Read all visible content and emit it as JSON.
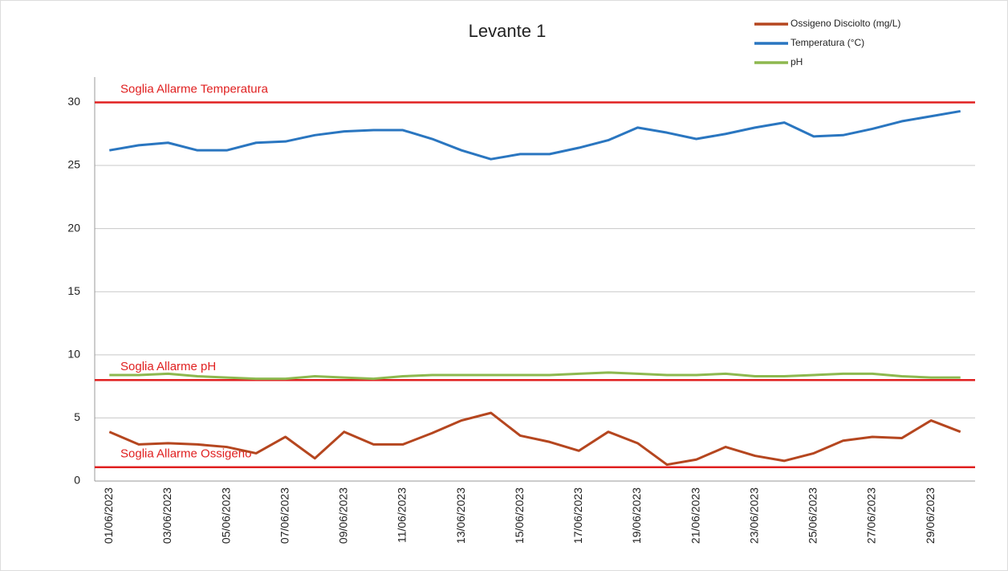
{
  "chart_data": {
    "type": "line",
    "title": "Levante 1",
    "categories": [
      "01/06/2023",
      null,
      "03/06/2023",
      null,
      "05/06/2023",
      null,
      "07/06/2023",
      null,
      "09/06/2023",
      null,
      "11/06/2023",
      null,
      "13/06/2023",
      null,
      "15/06/2023",
      null,
      "17/06/2023",
      null,
      "19/06/2023",
      null,
      "21/06/2023",
      null,
      "23/06/2023",
      null,
      "25/06/2023",
      null,
      "27/06/2023",
      null,
      "29/06/2023",
      null
    ],
    "series": [
      {
        "name": "Ossigeno Disciolto (mg/L)",
        "color": "#b5461f",
        "values": [
          3.9,
          2.9,
          3.0,
          2.9,
          2.7,
          2.2,
          3.5,
          1.8,
          3.9,
          2.9,
          2.9,
          3.8,
          4.8,
          5.4,
          3.6,
          3.1,
          2.4,
          3.9,
          3.0,
          1.3,
          1.7,
          2.7,
          2.0,
          1.6,
          2.2,
          3.2,
          3.5,
          3.4,
          4.8,
          3.9
        ]
      },
      {
        "name": "Temperatura (°C)",
        "color": "#2a76c0",
        "values": [
          26.2,
          26.6,
          26.8,
          26.2,
          26.2,
          26.8,
          26.9,
          27.4,
          27.7,
          27.8,
          27.8,
          27.1,
          26.2,
          25.5,
          25.9,
          25.9,
          26.4,
          27.0,
          28.0,
          27.6,
          27.1,
          27.5,
          28.0,
          28.4,
          27.3,
          27.4,
          27.9,
          28.5,
          28.9,
          29.3
        ]
      },
      {
        "name": "pH",
        "color": "#8db84f",
        "values": [
          8.4,
          8.4,
          8.5,
          8.3,
          8.2,
          8.1,
          8.1,
          8.3,
          8.2,
          8.1,
          8.3,
          8.4,
          8.4,
          8.4,
          8.4,
          8.4,
          8.5,
          8.6,
          8.5,
          8.4,
          8.4,
          8.5,
          8.3,
          8.3,
          8.4,
          8.5,
          8.5,
          8.3,
          8.2,
          8.2
        ]
      }
    ],
    "thresholds": [
      {
        "label": "Soglia Allarme Temperatura",
        "value": 30,
        "color": "#e02020"
      },
      {
        "label": "Soglia  Allarme pH",
        "value": 8,
        "color": "#e02020"
      },
      {
        "label": "Soglia  Allarme Ossigeno",
        "value": 1.1,
        "color": "#e02020"
      }
    ],
    "ylim": [
      0,
      32
    ],
    "yticks": [
      0,
      5,
      10,
      15,
      20,
      25,
      30
    ],
    "grid": true,
    "legend": "top-right"
  }
}
